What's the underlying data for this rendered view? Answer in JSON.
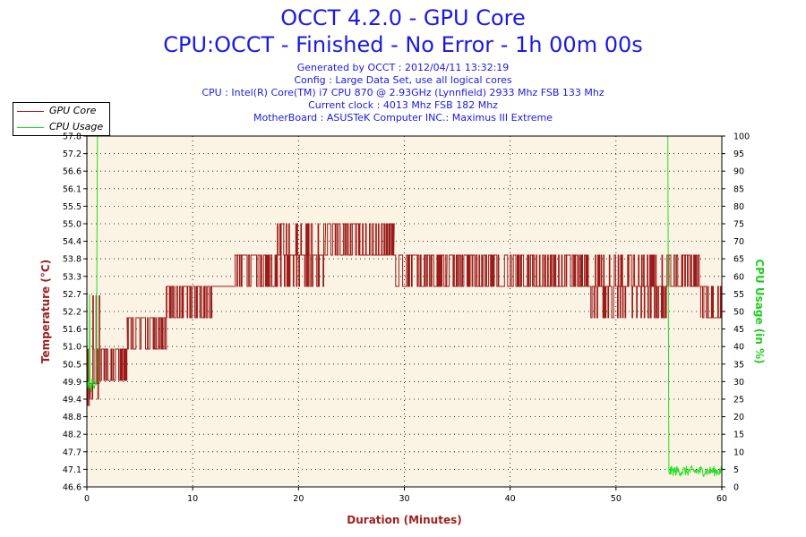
{
  "header": {
    "title_line1": "OCCT 4.2.0 - GPU Core",
    "title_line2": "CPU:OCCT - Finished - No Error - 1h 00m 00s",
    "info_lines": [
      "Generated by OCCT : 2012/04/11 13:32:19",
      "Config : Large Data Set, use all logical cores",
      "CPU : Intel(R) Core(TM) i7 CPU 870 @ 2.93GHz (Lynnfield) 2933 Mhz FSB 133 Mhz",
      "Current clock : 4013 Mhz FSB 182 Mhz",
      "MotherBoard : ASUSTeK Computer INC.: Maximus III Extreme"
    ]
  },
  "colors": {
    "gpu": "#9b1b1b",
    "cpu": "#22dd22",
    "plot_bg": "#fbf4e4",
    "title": "#1a1ae6",
    "axis_label_left": "#a02020",
    "axis_label_right": "#22cc22",
    "xlabel": "#a02020"
  },
  "chart_data": {
    "type": "line",
    "title": "OCCT 4.2.0 - GPU Core",
    "xlabel": "Duration (Minutes)",
    "ylabel": "Temperature (°C)",
    "y2label": "CPU Usage (in %)",
    "xlim": [
      0,
      60
    ],
    "ylim": [
      46.6,
      57.8
    ],
    "y2lim": [
      0,
      100
    ],
    "x_ticks": [
      0,
      10,
      20,
      30,
      40,
      50,
      60
    ],
    "y_ticks": [
      "46.6",
      "47.1",
      "47.7",
      "48.2",
      "48.8",
      "49.4",
      "49.9",
      "50.5",
      "51.0",
      "51.6",
      "52.2",
      "52.7",
      "53.3",
      "53.8",
      "54.4",
      "55.0",
      "55.5",
      "56.1",
      "56.6",
      "57.2",
      "57.8"
    ],
    "y2_ticks": [
      "0",
      "5",
      "10",
      "15",
      "20",
      "25",
      "30",
      "35",
      "40",
      "45",
      "50",
      "55",
      "60",
      "65",
      "70",
      "75",
      "80",
      "85",
      "90",
      "95",
      "100"
    ],
    "grid": true,
    "legend_position": "top-left",
    "series": [
      {
        "name": "GPU Core",
        "axis": "left",
        "segments": [
          {
            "x_start": 0.0,
            "x_end": 0.2,
            "base": 49.2,
            "alt": [
              49.9,
              51.0,
              49.0
            ]
          },
          {
            "x_start": 0.2,
            "x_end": 1.2,
            "base": 49.9,
            "alt": [
              51.0,
              52.7,
              49.4
            ]
          },
          {
            "x_start": 1.2,
            "x_end": 3.8,
            "base": 51.0,
            "alt": [
              50.0
            ]
          },
          {
            "x_start": 3.8,
            "x_end": 7.5,
            "base": 52.0,
            "alt": [
              51.0
            ]
          },
          {
            "x_start": 7.5,
            "x_end": 11.8,
            "base": 53.0,
            "alt": [
              52.0
            ]
          },
          {
            "x_start": 11.8,
            "x_end": 14.0,
            "base": 53.0,
            "alt": []
          },
          {
            "x_start": 14.0,
            "x_end": 18.0,
            "base": 54.0,
            "alt": [
              53.0
            ]
          },
          {
            "x_start": 18.0,
            "x_end": 22.5,
            "base": 54.0,
            "alt": [
              55.0,
              53.0
            ]
          },
          {
            "x_start": 22.5,
            "x_end": 29.0,
            "base": 54.0,
            "alt": [
              55.0
            ]
          },
          {
            "x_start": 29.0,
            "x_end": 34.0,
            "base": 54.0,
            "alt": [
              53.0
            ]
          },
          {
            "x_start": 34.0,
            "x_end": 38.5,
            "base": 53.0,
            "alt": [
              54.0
            ]
          },
          {
            "x_start": 38.5,
            "x_end": 47.5,
            "base": 53.0,
            "alt": [
              54.0
            ]
          },
          {
            "x_start": 47.5,
            "x_end": 55.0,
            "base": 53.0,
            "alt": [
              52.0,
              54.0
            ]
          },
          {
            "x_start": 55.0,
            "x_end": 58.0,
            "base": 53.0,
            "alt": [
              54.0
            ]
          },
          {
            "x_start": 58.0,
            "x_end": 60.0,
            "base": 52.0,
            "alt": [
              53.0
            ]
          }
        ]
      },
      {
        "name": "CPU Usage",
        "axis": "right",
        "points": [
          [
            0.0,
            28
          ],
          [
            0.1,
            30
          ],
          [
            0.2,
            28
          ],
          [
            0.25,
            55
          ],
          [
            0.3,
            29
          ],
          [
            0.4,
            27
          ],
          [
            0.5,
            31
          ],
          [
            0.6,
            29
          ],
          [
            0.7,
            28
          ],
          [
            0.8,
            30
          ],
          [
            0.9,
            29
          ],
          [
            1.0,
            100
          ],
          [
            1.1,
            100
          ],
          [
            54.9,
            100
          ],
          [
            55.0,
            5
          ]
        ],
        "tail": {
          "x_start": 55.0,
          "x_end": 60.0,
          "mean": 4.5,
          "spread": 1.5
        }
      }
    ]
  }
}
